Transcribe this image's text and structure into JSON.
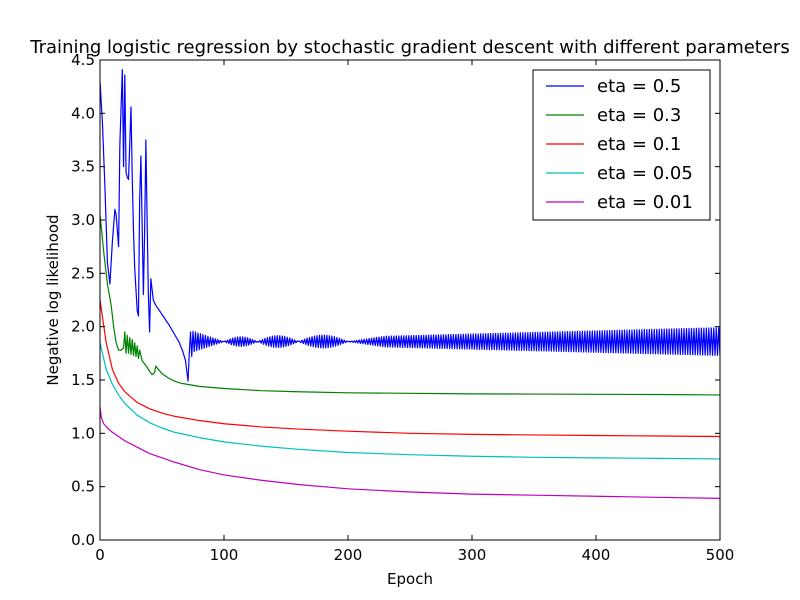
{
  "chart_data": {
    "type": "line",
    "title": "Training logistic regression by stochastic gradient descent with different parameters",
    "xlabel": "Epoch",
    "ylabel": "Negative log likelihood",
    "xlim": [
      0,
      500
    ],
    "ylim": [
      0.0,
      4.5
    ],
    "x_ticks": [
      0,
      100,
      200,
      300,
      400,
      500
    ],
    "x_tick_labels": [
      "0",
      "100",
      "200",
      "300",
      "400",
      "500"
    ],
    "y_ticks": [
      0.0,
      0.5,
      1.0,
      1.5,
      2.0,
      2.5,
      3.0,
      3.5,
      4.0,
      4.5
    ],
    "y_tick_labels": [
      "0.0",
      "0.5",
      "1.0",
      "1.5",
      "2.0",
      "2.5",
      "3.0",
      "3.5",
      "4.0",
      "4.5"
    ],
    "grid": false,
    "legend_position": "top-right",
    "series": [
      {
        "name": "eta = 0.5",
        "color": "#0000ff",
        "points": [
          [
            0,
            4.3
          ],
          [
            2,
            3.9
          ],
          [
            4,
            3.3
          ],
          [
            6,
            2.6
          ],
          [
            8,
            2.4
          ],
          [
            10,
            2.8
          ],
          [
            12,
            3.1
          ],
          [
            13,
            3.05
          ],
          [
            15,
            2.75
          ],
          [
            16,
            3.7
          ],
          [
            18,
            4.41
          ],
          [
            19,
            3.5
          ],
          [
            20,
            4.36
          ],
          [
            21,
            3.45
          ],
          [
            22,
            3.4
          ],
          [
            23,
            3.38
          ],
          [
            25,
            4.06
          ],
          [
            26,
            3.4
          ],
          [
            27,
            2.9
          ],
          [
            28,
            2.55
          ],
          [
            29,
            2.35
          ],
          [
            30,
            2.15
          ],
          [
            31,
            2.1
          ],
          [
            32,
            3.2
          ],
          [
            33,
            3.6
          ],
          [
            34,
            2.95
          ],
          [
            35,
            2.3
          ],
          [
            36,
            2.9
          ],
          [
            37,
            3.75
          ],
          [
            38,
            3.0
          ],
          [
            39,
            2.3
          ],
          [
            40,
            1.95
          ],
          [
            41,
            2.45
          ],
          [
            42,
            2.35
          ],
          [
            43,
            2.25
          ],
          [
            45,
            2.2
          ],
          [
            48,
            2.15
          ],
          [
            52,
            2.08
          ],
          [
            56,
            2.01
          ],
          [
            60,
            1.93
          ],
          [
            64,
            1.85
          ],
          [
            67,
            1.76
          ],
          [
            69,
            1.68
          ],
          [
            70,
            1.58
          ],
          [
            71,
            1.49
          ],
          [
            72,
            1.75
          ],
          [
            73,
            1.95
          ],
          [
            74,
            1.72
          ]
        ],
        "oscillation_from_epoch": 74,
        "oscillation_center": 1.86,
        "oscillation_segments": [
          {
            "from": 74,
            "to": 100,
            "amp_start": 0.1,
            "amp_end": 0.0
          },
          {
            "from": 100,
            "to": 127,
            "amp_peak": 0.045
          },
          {
            "from": 127,
            "to": 160,
            "amp_peak": 0.055
          },
          {
            "from": 160,
            "to": 200,
            "amp_peak": 0.06
          },
          {
            "from": 200,
            "to": 230,
            "amp_start": 0.0,
            "amp_end": 0.05
          },
          {
            "from": 230,
            "to": 500,
            "amp_start": 0.05,
            "amp_end": 0.13
          }
        ]
      },
      {
        "name": "eta = 0.3",
        "color": "#008000",
        "points": [
          [
            0,
            3.05
          ],
          [
            3,
            2.7
          ],
          [
            6,
            2.4
          ],
          [
            9,
            2.2
          ],
          [
            11,
            2.0
          ],
          [
            13,
            1.85
          ],
          [
            15,
            1.78
          ],
          [
            17,
            1.78
          ],
          [
            19,
            1.8
          ],
          [
            20,
            1.95
          ],
          [
            21,
            1.75
          ],
          [
            22,
            1.92
          ],
          [
            23,
            1.75
          ],
          [
            24,
            1.9
          ],
          [
            25,
            1.74
          ],
          [
            26,
            1.88
          ],
          [
            27,
            1.73
          ],
          [
            28,
            1.85
          ],
          [
            29,
            1.72
          ],
          [
            30,
            1.82
          ],
          [
            31,
            1.7
          ],
          [
            32,
            1.78
          ],
          [
            34,
            1.68
          ],
          [
            36,
            1.65
          ],
          [
            38,
            1.62
          ],
          [
            40,
            1.58
          ],
          [
            42,
            1.55
          ],
          [
            44,
            1.57
          ],
          [
            45,
            1.63
          ],
          [
            47,
            1.6
          ],
          [
            50,
            1.56
          ],
          [
            55,
            1.52
          ],
          [
            60,
            1.49
          ],
          [
            65,
            1.47
          ],
          [
            70,
            1.46
          ],
          [
            80,
            1.44
          ],
          [
            100,
            1.42
          ],
          [
            130,
            1.4
          ],
          [
            160,
            1.39
          ],
          [
            200,
            1.38
          ],
          [
            250,
            1.375
          ],
          [
            300,
            1.37
          ],
          [
            350,
            1.368
          ],
          [
            400,
            1.366
          ],
          [
            450,
            1.364
          ],
          [
            500,
            1.36
          ]
        ]
      },
      {
        "name": "eta = 0.1",
        "color": "#ff0000",
        "points": [
          [
            0,
            2.25
          ],
          [
            5,
            1.85
          ],
          [
            10,
            1.6
          ],
          [
            15,
            1.47
          ],
          [
            20,
            1.39
          ],
          [
            30,
            1.29
          ],
          [
            40,
            1.23
          ],
          [
            50,
            1.19
          ],
          [
            60,
            1.16
          ],
          [
            80,
            1.12
          ],
          [
            100,
            1.09
          ],
          [
            130,
            1.06
          ],
          [
            160,
            1.04
          ],
          [
            200,
            1.02
          ],
          [
            250,
            1.0
          ],
          [
            300,
            0.99
          ],
          [
            350,
            0.985
          ],
          [
            400,
            0.98
          ],
          [
            450,
            0.975
          ],
          [
            500,
            0.97
          ]
        ]
      },
      {
        "name": "eta = 0.05",
        "color": "#00bfbf",
        "points": [
          [
            0,
            1.85
          ],
          [
            5,
            1.6
          ],
          [
            10,
            1.46
          ],
          [
            15,
            1.36
          ],
          [
            20,
            1.28
          ],
          [
            30,
            1.17
          ],
          [
            40,
            1.1
          ],
          [
            50,
            1.05
          ],
          [
            60,
            1.01
          ],
          [
            80,
            0.96
          ],
          [
            100,
            0.92
          ],
          [
            130,
            0.88
          ],
          [
            160,
            0.85
          ],
          [
            200,
            0.82
          ],
          [
            250,
            0.8
          ],
          [
            300,
            0.785
          ],
          [
            350,
            0.775
          ],
          [
            400,
            0.77
          ],
          [
            450,
            0.765
          ],
          [
            500,
            0.76
          ]
        ]
      },
      {
        "name": "eta = 0.01",
        "color": "#bf00bf",
        "points": [
          [
            0,
            1.25
          ],
          [
            1,
            1.15
          ],
          [
            3,
            1.09
          ],
          [
            6,
            1.05
          ],
          [
            10,
            1.01
          ],
          [
            20,
            0.93
          ],
          [
            30,
            0.87
          ],
          [
            40,
            0.81
          ],
          [
            50,
            0.77
          ],
          [
            60,
            0.73
          ],
          [
            80,
            0.66
          ],
          [
            100,
            0.61
          ],
          [
            130,
            0.56
          ],
          [
            160,
            0.52
          ],
          [
            200,
            0.48
          ],
          [
            250,
            0.45
          ],
          [
            300,
            0.43
          ],
          [
            350,
            0.42
          ],
          [
            400,
            0.41
          ],
          [
            450,
            0.4
          ],
          [
            500,
            0.39
          ]
        ]
      }
    ]
  }
}
